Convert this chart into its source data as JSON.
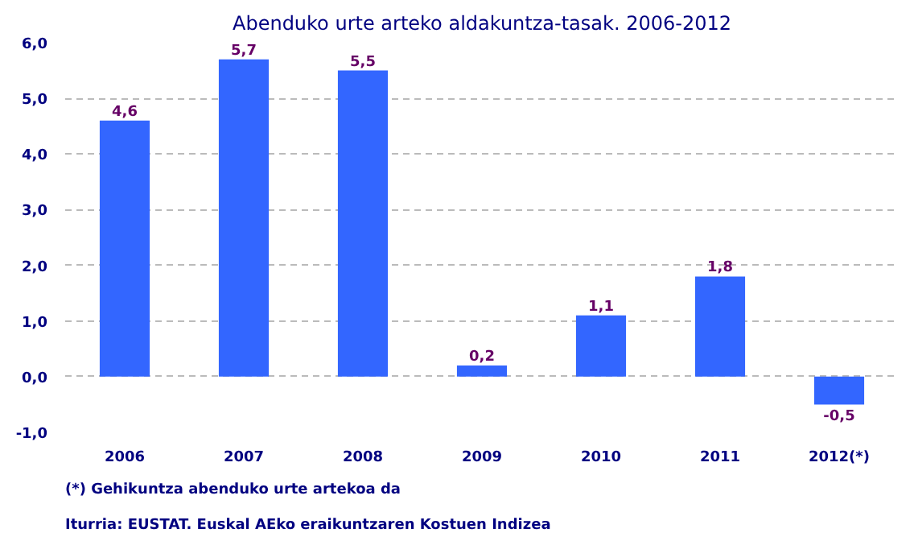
{
  "chart_data": {
    "type": "bar",
    "title": "Abenduko urte arteko aldakuntza-tasak. 2006-2012",
    "categories": [
      "2006",
      "2007",
      "2008",
      "2009",
      "2010",
      "2011",
      "2012(*)"
    ],
    "values": [
      4.6,
      5.7,
      5.5,
      0.2,
      1.1,
      1.8,
      -0.5
    ],
    "value_labels": [
      "4,6",
      "5,7",
      "5,5",
      "0,2",
      "1,1",
      "1,8",
      "-0,5"
    ],
    "color": "#3366ff",
    "ylim": [
      -1,
      6
    ],
    "yticks": [
      {
        "value": -1,
        "label": "-1,0"
      },
      {
        "value": 0,
        "label": "0,0"
      },
      {
        "value": 1,
        "label": "1,0"
      },
      {
        "value": 2,
        "label": "2,0"
      },
      {
        "value": 3,
        "label": "3,0"
      },
      {
        "value": 4,
        "label": "4,0"
      },
      {
        "value": 5,
        "label": "5,0"
      },
      {
        "value": 6,
        "label": "6,0"
      }
    ],
    "grid": "y",
    "annotations": [
      "(*) Gehikuntza abenduko urte artekoa da",
      "Iturria: EUSTAT. Euskal AEko eraikuntzaren Kostuen Indizea"
    ]
  }
}
